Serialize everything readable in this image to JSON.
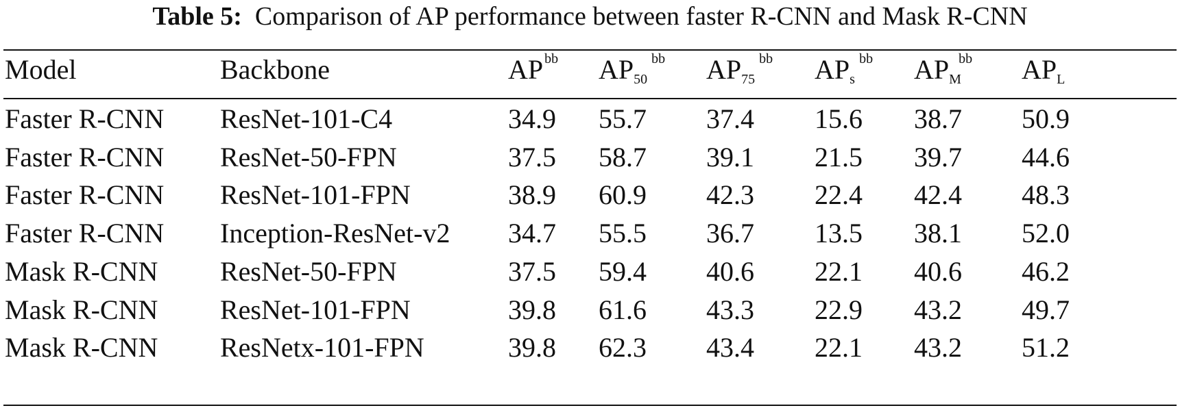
{
  "caption": {
    "label": "Table 5:",
    "text": "Comparison of AP performance between faster R-CNN and Mask R-CNN"
  },
  "header": {
    "model": "Model",
    "backbone": "Backbone",
    "ap": {
      "base": "AP",
      "sup": "bb",
      "sub": ""
    },
    "ap50": {
      "base": "AP",
      "sup": "bb",
      "sub": "50"
    },
    "ap75": {
      "base": "AP",
      "sup": "bb",
      "sub": "75"
    },
    "aps": {
      "base": "AP",
      "sup": "bb",
      "sub": "s"
    },
    "apm": {
      "base": "AP",
      "sup": "bb",
      "sub": "M"
    },
    "apl": {
      "base": "AP",
      "sup": "",
      "sub": "L"
    }
  },
  "rows": [
    {
      "model": "Faster R-CNN",
      "backbone": "ResNet-101-C4",
      "ap": "34.9",
      "ap50": "55.7",
      "ap75": "37.4",
      "aps": "15.6",
      "apm": "38.7",
      "apl": "50.9"
    },
    {
      "model": "Faster R-CNN",
      "backbone": "ResNet-50-FPN",
      "ap": "37.5",
      "ap50": "58.7",
      "ap75": "39.1",
      "aps": "21.5",
      "apm": "39.7",
      "apl": "44.6"
    },
    {
      "model": "Faster R-CNN",
      "backbone": "ResNet-101-FPN",
      "ap": "38.9",
      "ap50": "60.9",
      "ap75": "42.3",
      "aps": "22.4",
      "apm": "42.4",
      "apl": "48.3"
    },
    {
      "model": "Faster R-CNN",
      "backbone": "Inception-ResNet-v2",
      "ap": "34.7",
      "ap50": "55.5",
      "ap75": "36.7",
      "aps": "13.5",
      "apm": "38.1",
      "apl": "52.0"
    },
    {
      "model": "Mask R-CNN",
      "backbone": "ResNet-50-FPN",
      "ap": "37.5",
      "ap50": "59.4",
      "ap75": "40.6",
      "aps": "22.1",
      "apm": "40.6",
      "apl": "46.2"
    },
    {
      "model": "Mask R-CNN",
      "backbone": "ResNet-101-FPN",
      "ap": "39.8",
      "ap50": "61.6",
      "ap75": "43.3",
      "aps": "22.9",
      "apm": "43.2",
      "apl": "49.7"
    },
    {
      "model": "Mask R-CNN",
      "backbone": "ResNetx-101-FPN",
      "ap": "39.8",
      "ap50": "62.3",
      "ap75": "43.4",
      "aps": "22.1",
      "apm": "43.2",
      "apl": "51.2"
    }
  ]
}
